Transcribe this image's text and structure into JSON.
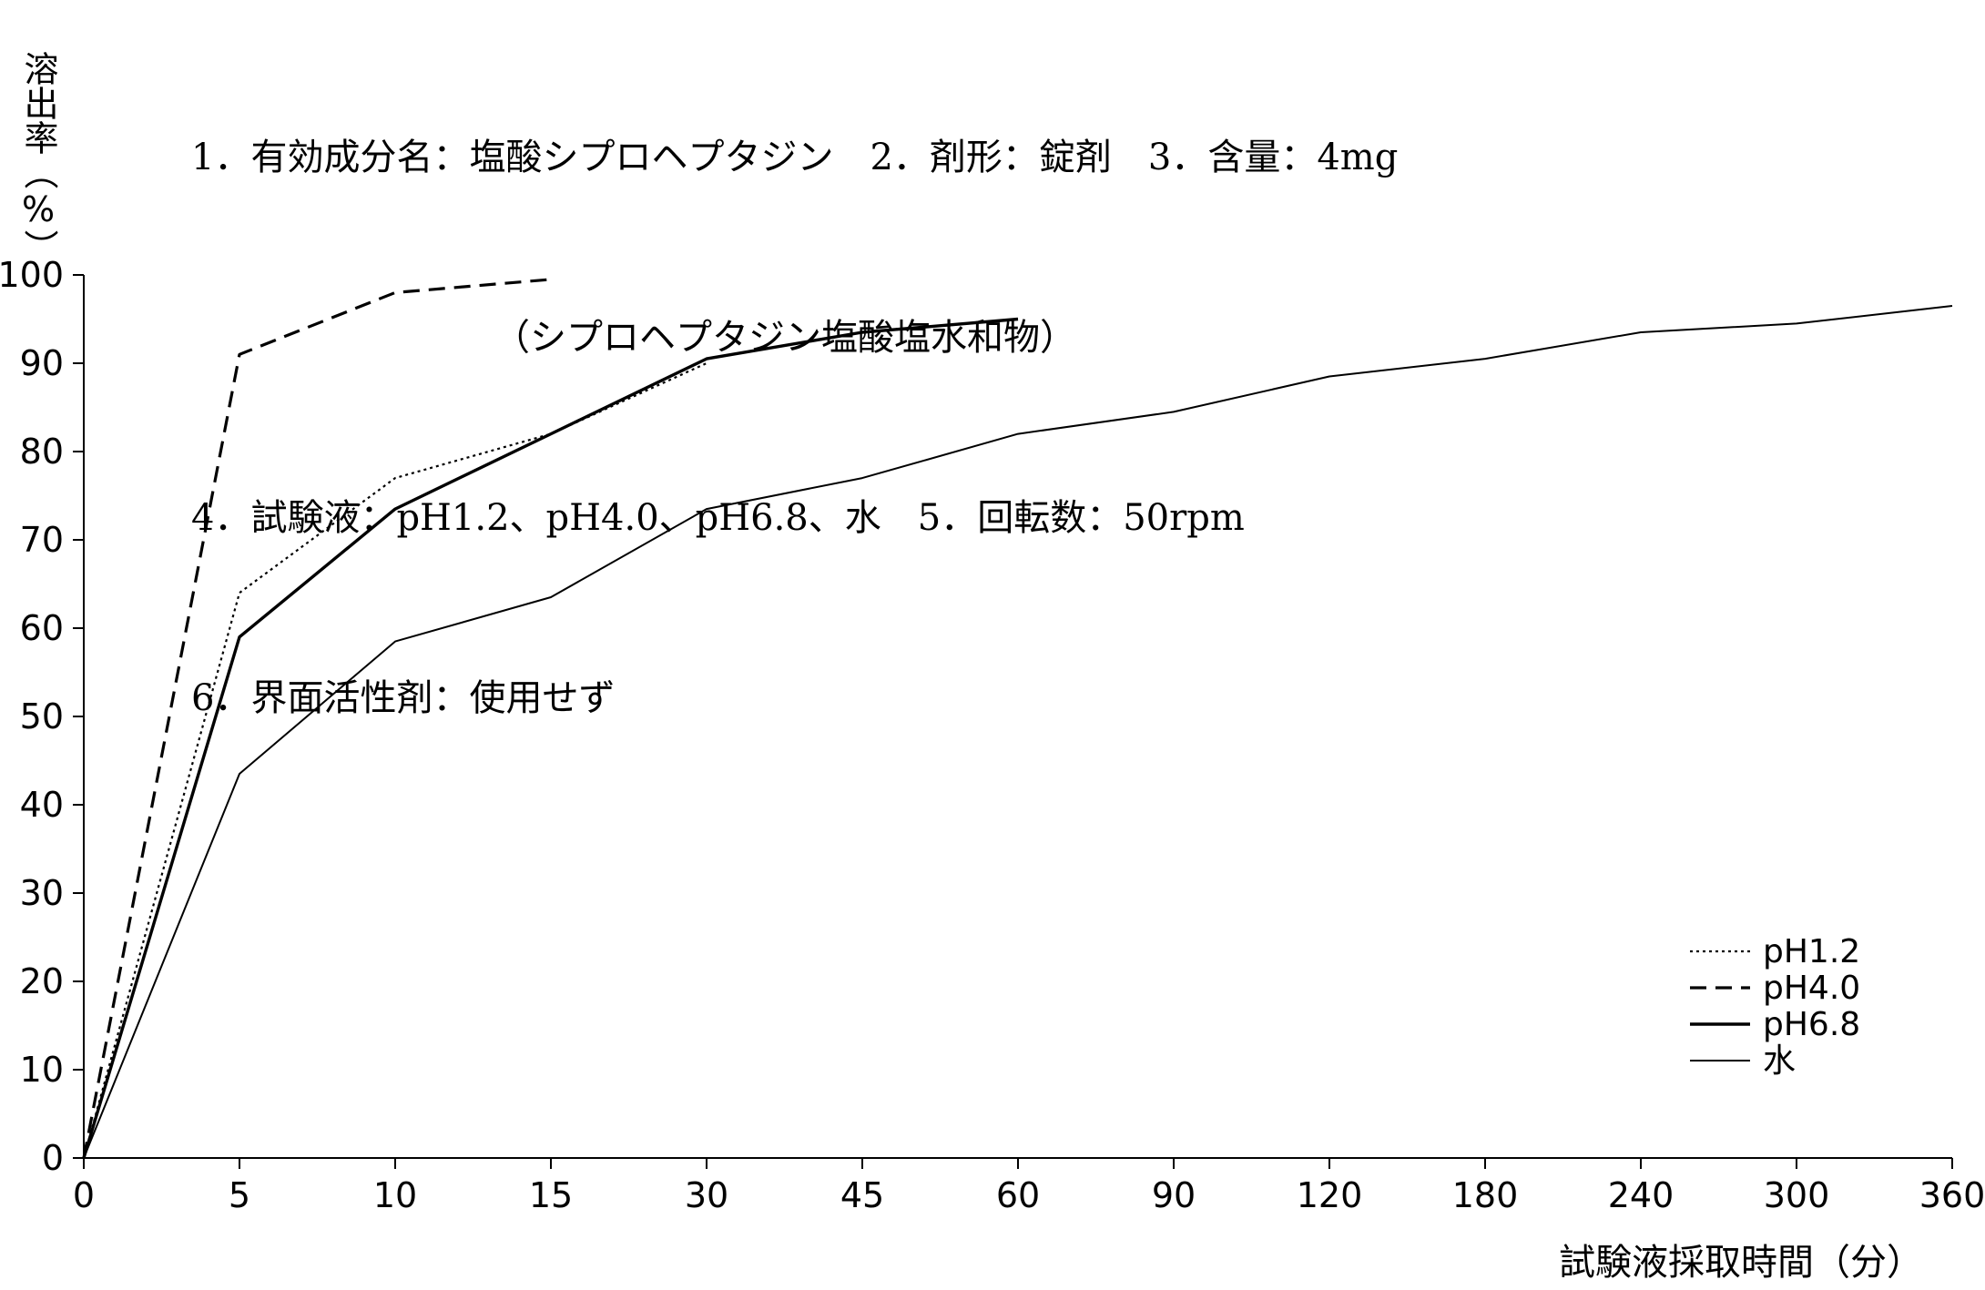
{
  "header": {
    "line1": "1．有効成分名：塩酸シプロヘプタジン　2．剤形：錠剤　3．含量：4mg",
    "line2": "（シプロヘプタジン塩酸塩水和物）",
    "line3": "4．試験液：pH1.2、pH4.0、pH6.8、水　5．回転数：50rpm",
    "line4": "6．界面活性剤：使用せず"
  },
  "chart_data": {
    "type": "line",
    "xlabel": "試験液採取時間（分）",
    "ylabel": "溶出率（%）",
    "categories": [
      "0",
      "5",
      "10",
      "15",
      "30",
      "45",
      "60",
      "90",
      "120",
      "180",
      "240",
      "300",
      "360"
    ],
    "ylim": [
      0,
      100
    ],
    "yticks": [
      "0",
      "10",
      "20",
      "30",
      "40",
      "50",
      "60",
      "70",
      "80",
      "90",
      "100"
    ],
    "grid": false,
    "legend_position": "bottom-right",
    "series": [
      {
        "name": "pH1.2",
        "style": "dotted",
        "values": [
          0,
          64,
          77,
          82,
          90,
          null,
          null,
          null,
          null,
          null,
          null,
          null,
          null
        ]
      },
      {
        "name": "pH4.0",
        "style": "dashed",
        "values": [
          0,
          91,
          98,
          99.5,
          null,
          null,
          null,
          null,
          null,
          null,
          null,
          null,
          null
        ]
      },
      {
        "name": "pH6.8",
        "style": "solid-bold",
        "values": [
          0,
          59,
          73.5,
          82,
          90.5,
          93.5,
          95,
          null,
          null,
          null,
          null,
          null,
          null
        ]
      },
      {
        "name": "水",
        "style": "solid",
        "values": [
          0,
          43.5,
          58.5,
          63.5,
          73.5,
          77,
          82,
          84.5,
          88.5,
          90.5,
          93.5,
          94.5,
          96.5
        ]
      }
    ]
  }
}
